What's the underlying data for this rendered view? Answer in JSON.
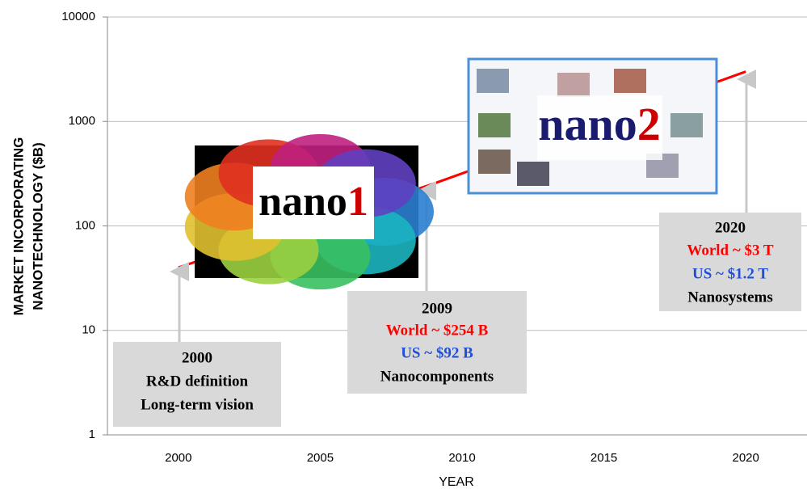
{
  "chart_data": {
    "type": "line",
    "x_label": "YEAR",
    "y_label": [
      "MARKET  INCORPORATING",
      "NANOTECHNOLOGY  ($B)"
    ],
    "x": [
      2000,
      2009,
      2020
    ],
    "series": [
      {
        "color": "#ff0000",
        "values": [
          40,
          254,
          3000
        ]
      }
    ],
    "xlim": [
      1997.5,
      2022.5
    ],
    "xticks": [
      2000,
      2005,
      2010,
      2015,
      2020
    ],
    "ylim": [
      1,
      10000
    ],
    "yticks": [
      1,
      10,
      100,
      1000,
      10000
    ],
    "log_y": true,
    "grid": true,
    "images": [
      {
        "text": "nano",
        "number": "1",
        "text_color": "#000000",
        "number_color": "#cc0000"
      },
      {
        "text": "nano",
        "number": "2",
        "text_color": "#1a1a6e",
        "number_color": "#cc0000"
      }
    ],
    "annotations": [
      {
        "lines": [
          {
            "text": "2000",
            "color": "#000000"
          },
          {
            "text": "R&D definition",
            "color": "#000000"
          },
          {
            "text": "Long-term vision",
            "color": "#000000"
          }
        ]
      },
      {
        "lines": [
          {
            "text": "2009",
            "color": "#000000"
          },
          {
            "text": "World ~ $254 B",
            "color": "#ff0000"
          },
          {
            "text": "US ~ $92 B",
            "color": "#1f4fd8"
          },
          {
            "text": "Nanocomponents",
            "color": "#000000"
          }
        ]
      },
      {
        "lines": [
          {
            "text": "2020",
            "color": "#000000"
          },
          {
            "text": "World ~ $3 T",
            "color": "#ff0000"
          },
          {
            "text": "US ~ $1.2 T",
            "color": "#1f4fd8"
          },
          {
            "text": "Nanosystems",
            "color": "#000000"
          }
        ]
      }
    ]
  }
}
